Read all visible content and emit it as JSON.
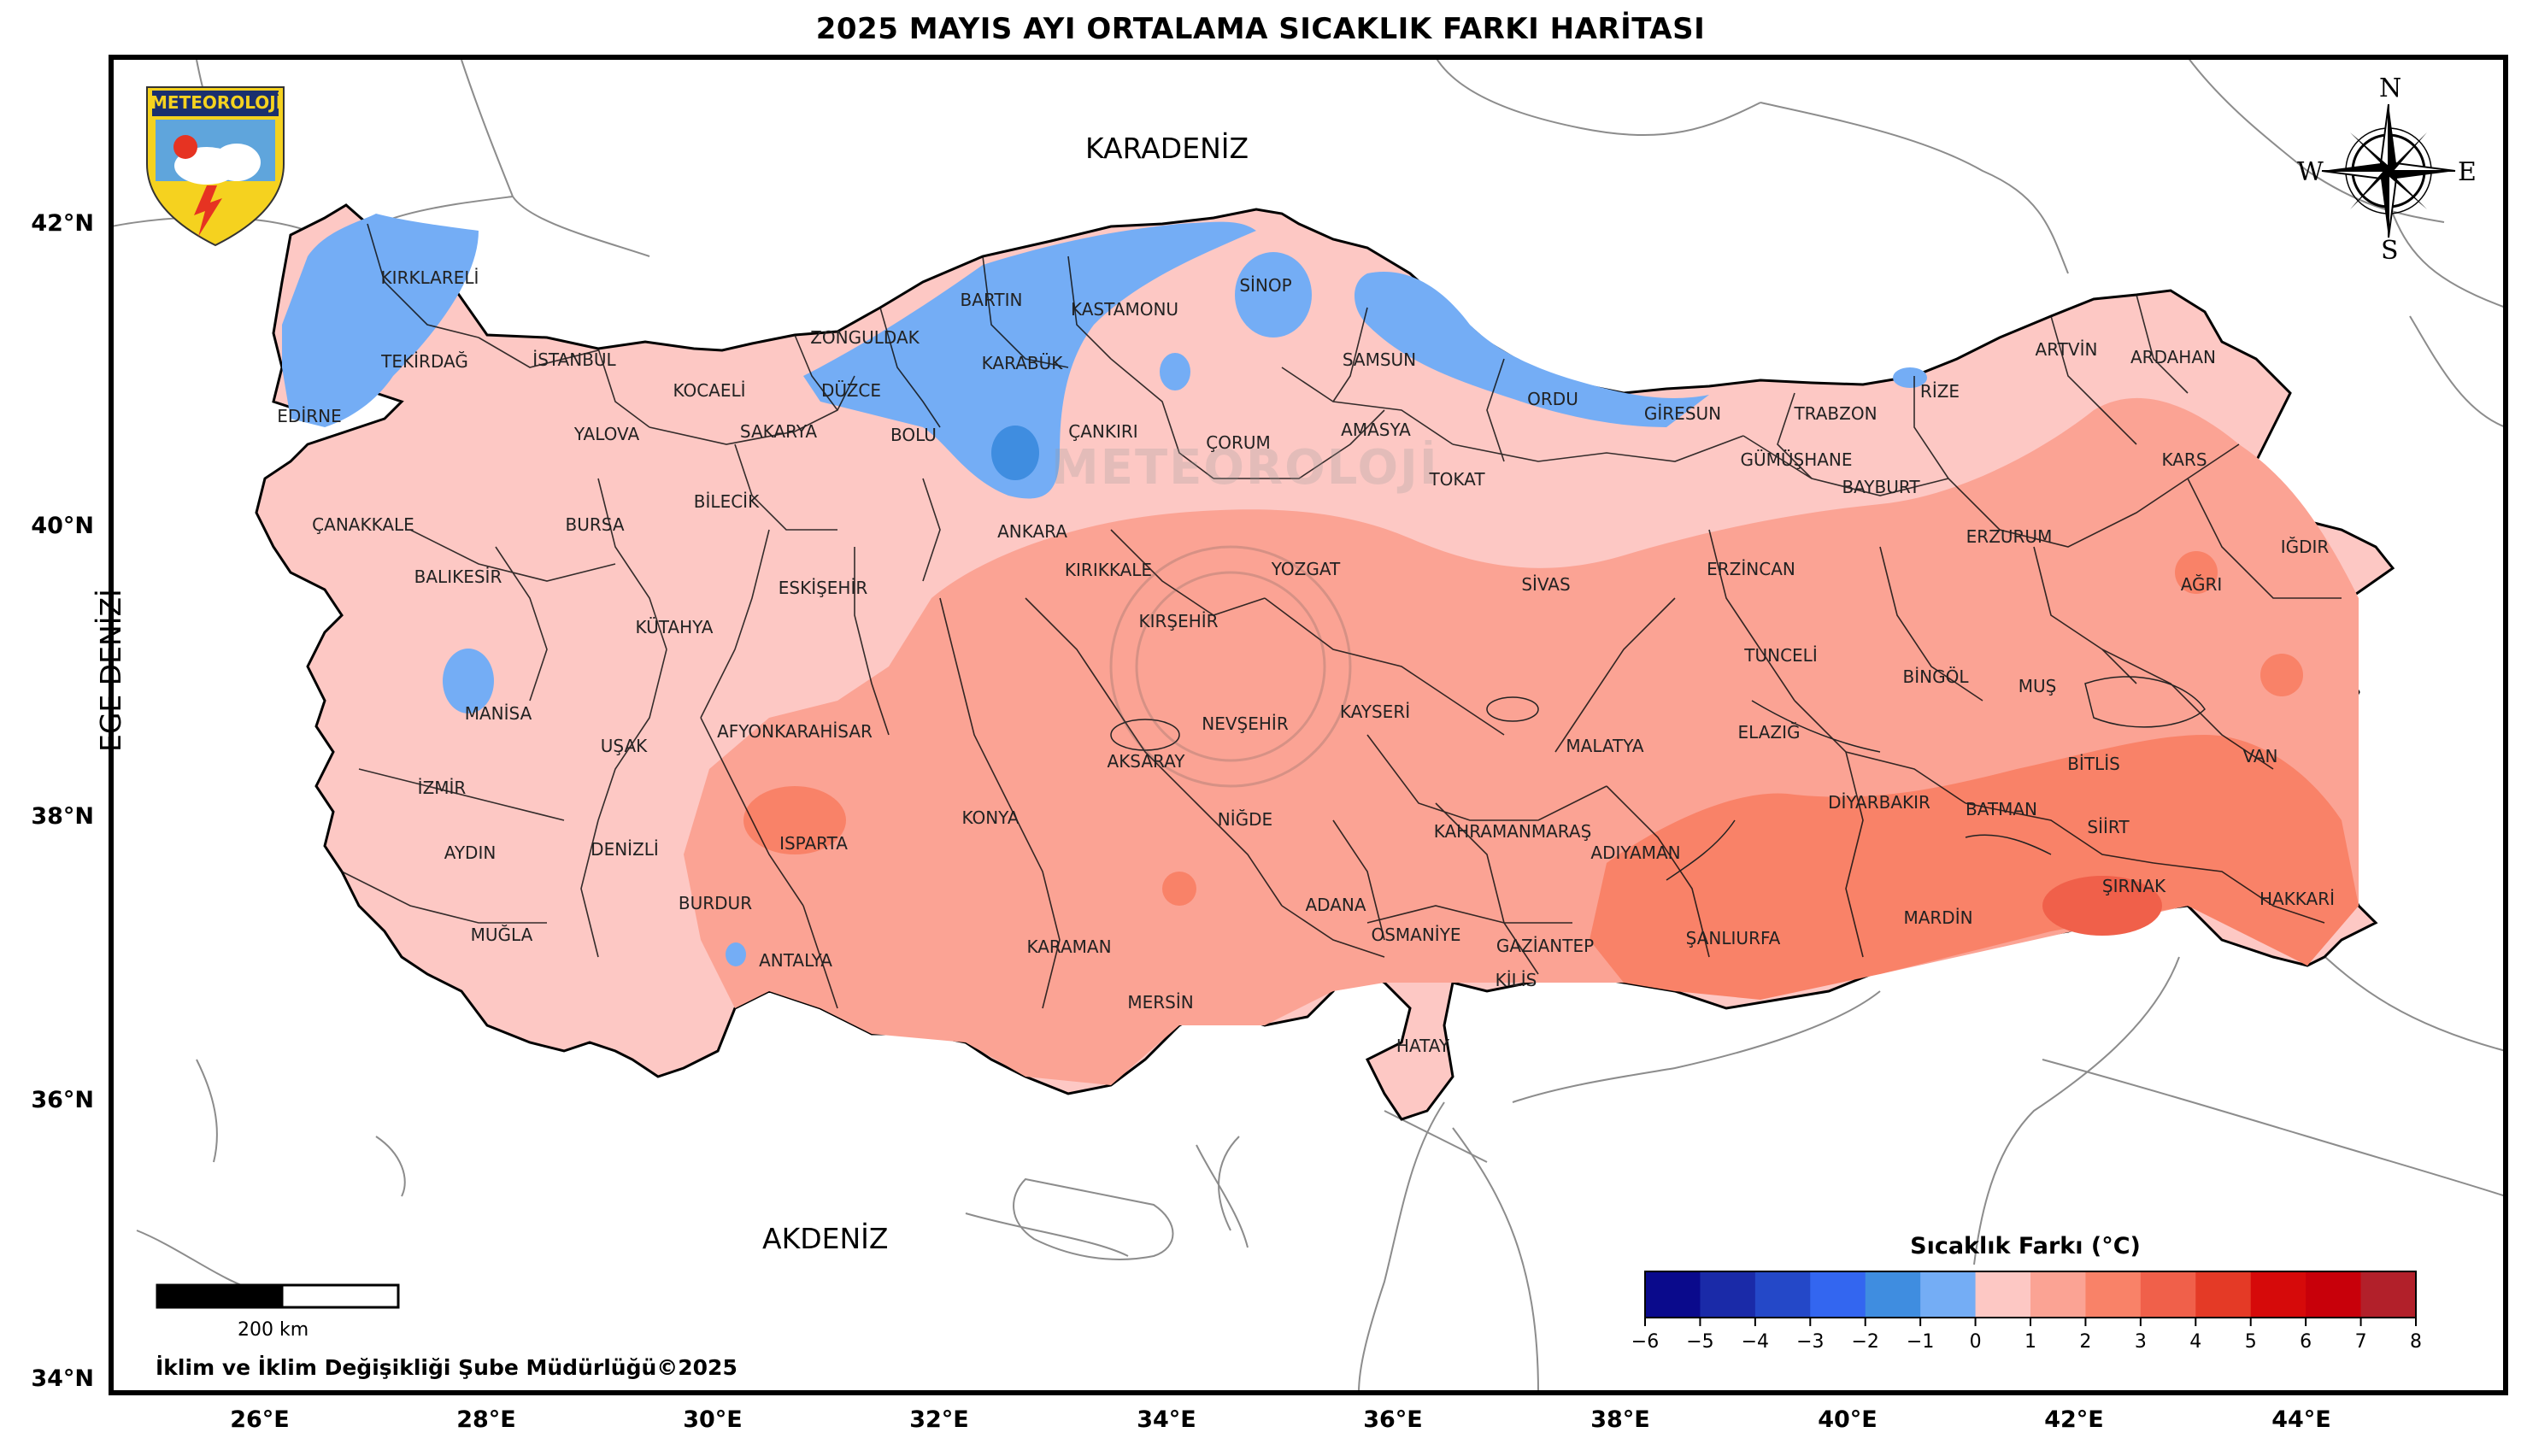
{
  "title": "2025 MAYIS AYI ORTALAMA SICAKLIK FARKI HARİTASI",
  "logo_text": "METEOROLOJİ",
  "watermark_text": "METEOROLOJİ",
  "seas": {
    "black_sea": "KARADENİZ",
    "mediterranean": "AKDENİZ",
    "aegean": "EGE DENİZİ"
  },
  "lat_labels": [
    "42°N",
    "40°N",
    "38°N",
    "36°N",
    "34°N"
  ],
  "lon_labels": [
    "26°E",
    "28°E",
    "30°E",
    "32°E",
    "34°E",
    "36°E",
    "38°E",
    "40°E",
    "42°E",
    "44°E"
  ],
  "compass": {
    "n": "N",
    "s": "S",
    "e": "E",
    "w": "W"
  },
  "scale_bar": {
    "label": "200 km"
  },
  "credit": "İklim ve İklim Değişikliği Şube Müdürlüğü©2025",
  "legend": {
    "title": "Sıcaklık Farkı (°C)",
    "ticks": [
      "−6",
      "−5",
      "−4",
      "−3",
      "−2",
      "−1",
      "0",
      "1",
      "2",
      "3",
      "4",
      "5",
      "6",
      "7",
      "8"
    ],
    "colors": [
      "#0a0a8c",
      "#1a2aa8",
      "#2448c8",
      "#3366f0",
      "#3f8de0",
      "#74adf5",
      "#fdc8c4",
      "#fba394",
      "#f98268",
      "#f0604a",
      "#e43a26",
      "#d60a0a",
      "#c8000a",
      "#b2202a"
    ]
  },
  "provinces": [
    {
      "name": "KIRKLARELİ"
    },
    {
      "name": "TEKİRDAĞ"
    },
    {
      "name": "EDİRNE"
    },
    {
      "name": "İSTANBUL"
    },
    {
      "name": "YALOVA"
    },
    {
      "name": "KOCAELİ"
    },
    {
      "name": "SAKARYA"
    },
    {
      "name": "DÜZCE"
    },
    {
      "name": "ZONGULDAK"
    },
    {
      "name": "BARTIN"
    },
    {
      "name": "KARABÜK"
    },
    {
      "name": "KASTAMONU"
    },
    {
      "name": "SİNOP"
    },
    {
      "name": "SAMSUN"
    },
    {
      "name": "ORDU"
    },
    {
      "name": "GİRESUN"
    },
    {
      "name": "TRABZON"
    },
    {
      "name": "RİZE"
    },
    {
      "name": "ARTVİN"
    },
    {
      "name": "ARDAHAN"
    },
    {
      "name": "KARS"
    },
    {
      "name": "IĞDIR"
    },
    {
      "name": "AĞRI"
    },
    {
      "name": "VAN"
    },
    {
      "name": "HAKKARİ"
    },
    {
      "name": "ŞIRNAK"
    },
    {
      "name": "SİİRT"
    },
    {
      "name": "BİTLİS"
    },
    {
      "name": "BATMAN"
    },
    {
      "name": "MARDİN"
    },
    {
      "name": "DİYARBAKIR"
    },
    {
      "name": "ŞANLIURFA"
    },
    {
      "name": "ADIYAMAN"
    },
    {
      "name": "GAZİANTEP"
    },
    {
      "name": "KİLİS"
    },
    {
      "name": "HATAY"
    },
    {
      "name": "OSMANİYE"
    },
    {
      "name": "ADANA"
    },
    {
      "name": "MERSİN"
    },
    {
      "name": "KARAMAN"
    },
    {
      "name": "KONYA"
    },
    {
      "name": "ANTALYA"
    },
    {
      "name": "BURDUR"
    },
    {
      "name": "ISPARTA"
    },
    {
      "name": "AFYONKARAHİSAR"
    },
    {
      "name": "DENİZLİ"
    },
    {
      "name": "MUĞLA"
    },
    {
      "name": "AYDIN"
    },
    {
      "name": "İZMİR"
    },
    {
      "name": "MANİSA"
    },
    {
      "name": "UŞAK"
    },
    {
      "name": "KÜTAHYA"
    },
    {
      "name": "BALIKESİR"
    },
    {
      "name": "ÇANAKKALE"
    },
    {
      "name": "BURSA"
    },
    {
      "name": "BİLECİK"
    },
    {
      "name": "ESKİŞEHİR"
    },
    {
      "name": "BOLU"
    },
    {
      "name": "ÇANKIRI"
    },
    {
      "name": "ANKARA"
    },
    {
      "name": "KIRIKKALE"
    },
    {
      "name": "KIRŞEHİR"
    },
    {
      "name": "AKSARAY"
    },
    {
      "name": "NEVŞEHİR"
    },
    {
      "name": "NİĞDE"
    },
    {
      "name": "KAYSERİ"
    },
    {
      "name": "YOZGAT"
    },
    {
      "name": "ÇORUM"
    },
    {
      "name": "AMASYA"
    },
    {
      "name": "TOKAT"
    },
    {
      "name": "SİVAS"
    },
    {
      "name": "ERZİNCAN"
    },
    {
      "name": "GÜMÜŞHANE"
    },
    {
      "name": "BAYBURT"
    },
    {
      "name": "ERZURUM"
    },
    {
      "name": "TUNCELİ"
    },
    {
      "name": "BİNGÖL"
    },
    {
      "name": "MUŞ"
    },
    {
      "name": "ELAZIĞ"
    },
    {
      "name": "MALATYA"
    },
    {
      "name": "KAHRAMANMARAŞ"
    }
  ]
}
